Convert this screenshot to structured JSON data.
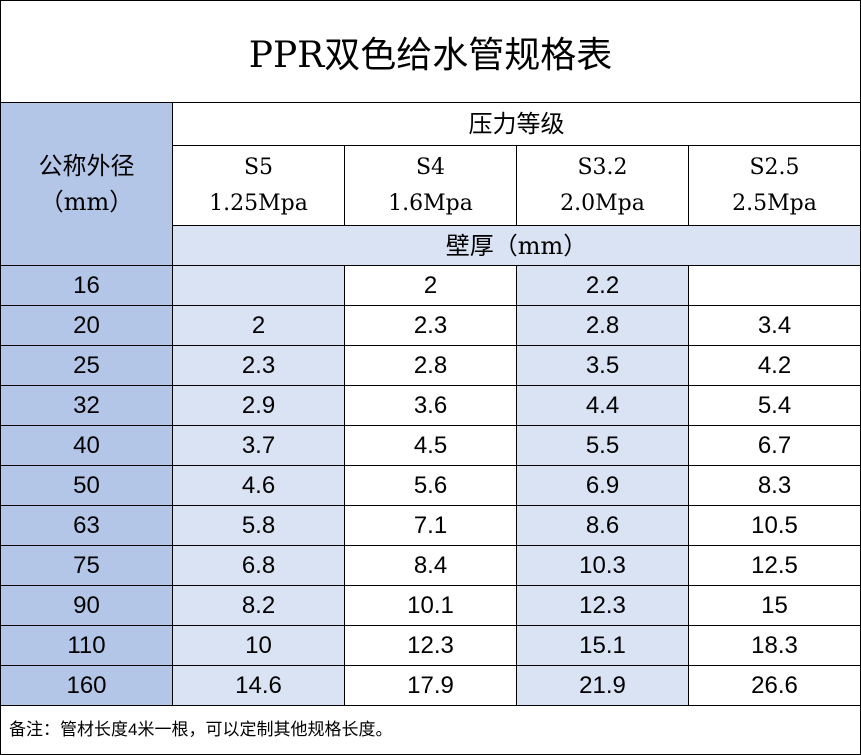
{
  "title": "PPR双色给水管规格表",
  "table": {
    "corner": [
      "公称外径",
      "（mm）"
    ],
    "group_header": "压力等级",
    "columns": [
      {
        "series": "S5",
        "pressure": "1.25Mpa"
      },
      {
        "series": "S4",
        "pressure": "1.6Mpa"
      },
      {
        "series": "S3.2",
        "pressure": "2.0Mpa"
      },
      {
        "series": "S2.5",
        "pressure": "2.5Mpa"
      }
    ],
    "unit_row": "壁厚（mm）",
    "rows": [
      [
        16,
        null,
        2,
        2.2,
        null
      ],
      [
        20,
        2,
        2.3,
        2.8,
        3.4
      ],
      [
        25,
        2.3,
        2.8,
        3.5,
        4.2
      ],
      [
        32,
        2.9,
        3.6,
        4.4,
        5.4
      ],
      [
        40,
        3.7,
        4.5,
        5.5,
        6.7
      ],
      [
        50,
        4.6,
        5.6,
        6.9,
        8.3
      ],
      [
        63,
        5.8,
        7.1,
        8.6,
        10.5
      ],
      [
        75,
        6.8,
        8.4,
        10.3,
        12.5
      ],
      [
        90,
        8.2,
        10.1,
        12.3,
        15
      ],
      [
        110,
        10,
        12.3,
        15.1,
        18.3
      ],
      [
        160,
        14.6,
        17.9,
        21.9,
        26.6
      ]
    ]
  },
  "note": "备注：管材长度4米一根，可以定制其他规格长度。"
}
